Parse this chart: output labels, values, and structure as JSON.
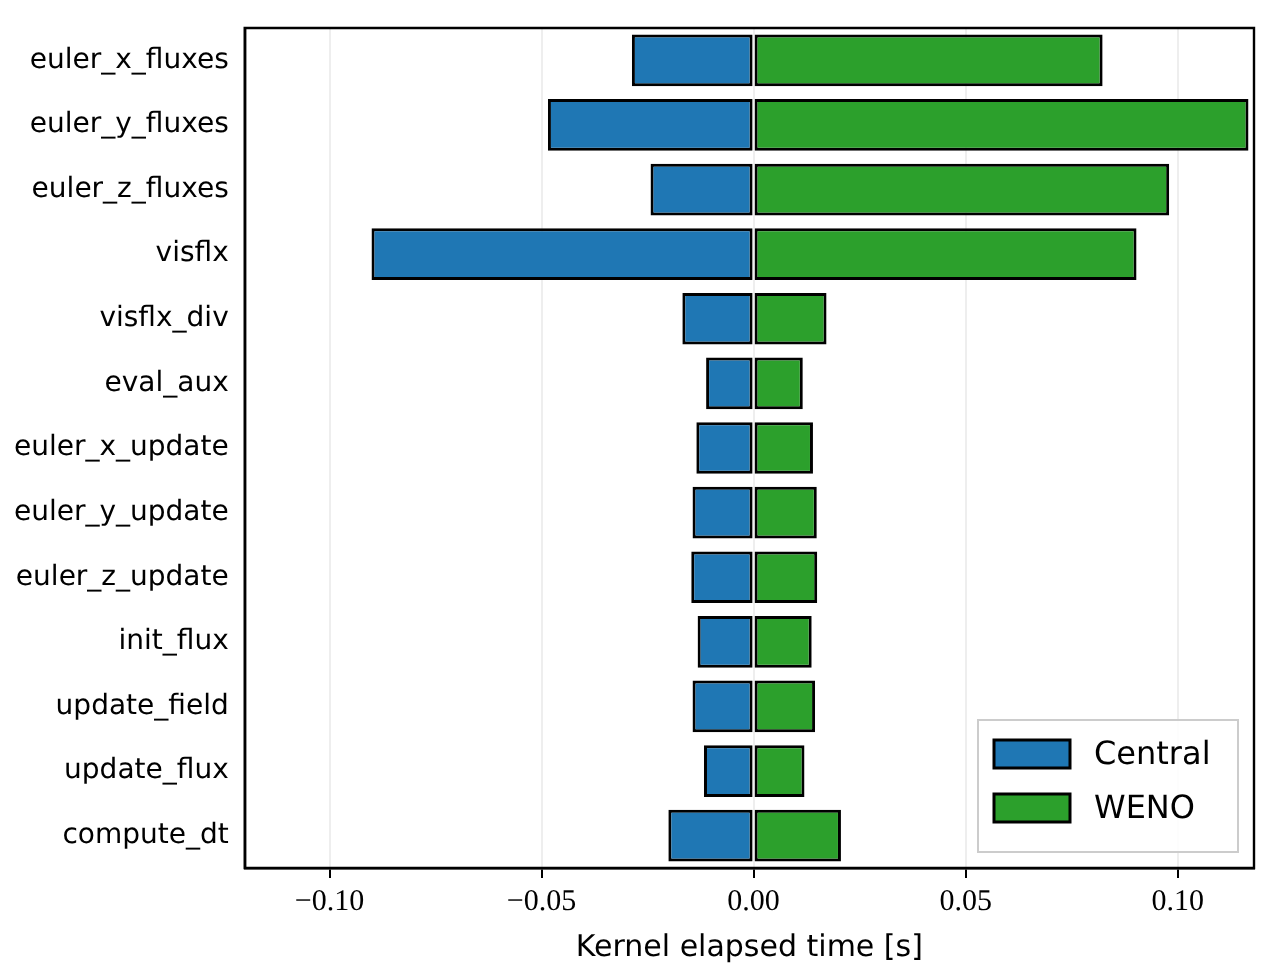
{
  "chart_data": {
    "type": "bar",
    "orientation": "horizontal",
    "stacked": true,
    "xlabel": "Kernel elapsed time [s]",
    "categories": [
      "euler_x_fluxes",
      "euler_y_fluxes",
      "euler_z_fluxes",
      "visflx",
      "visflx_div",
      "eval_aux",
      "euler_x_update",
      "euler_y_update",
      "euler_z_update",
      "init_flux",
      "update_field",
      "update_flux",
      "compute_dt"
    ],
    "series": [
      {
        "name": "Central",
        "color": "#1f77b4",
        "values": [
          -0.0287,
          -0.0485,
          -0.0243,
          -0.0901,
          -0.0168,
          -0.0112,
          -0.0135,
          -0.0144,
          -0.0147,
          -0.0132,
          -0.0144,
          -0.0117,
          -0.0201
        ]
      },
      {
        "name": "WENO",
        "color": "#2ca02c",
        "values": [
          0.0823,
          0.1167,
          0.098,
          0.0903,
          0.0172,
          0.0116,
          0.014,
          0.0149,
          0.015,
          0.0137,
          0.0145,
          0.012,
          0.0206
        ]
      }
    ],
    "xlim": [
      -0.12,
      0.118
    ],
    "xticks": [
      {
        "value": -0.1,
        "label": "−0.10"
      },
      {
        "value": -0.05,
        "label": "−0.05"
      },
      {
        "value": 0,
        "label": "0.00"
      },
      {
        "value": 0.05,
        "label": "0.05"
      },
      {
        "value": 0.1,
        "label": "0.10"
      }
    ],
    "grid": "x",
    "legend": "bottom right"
  }
}
